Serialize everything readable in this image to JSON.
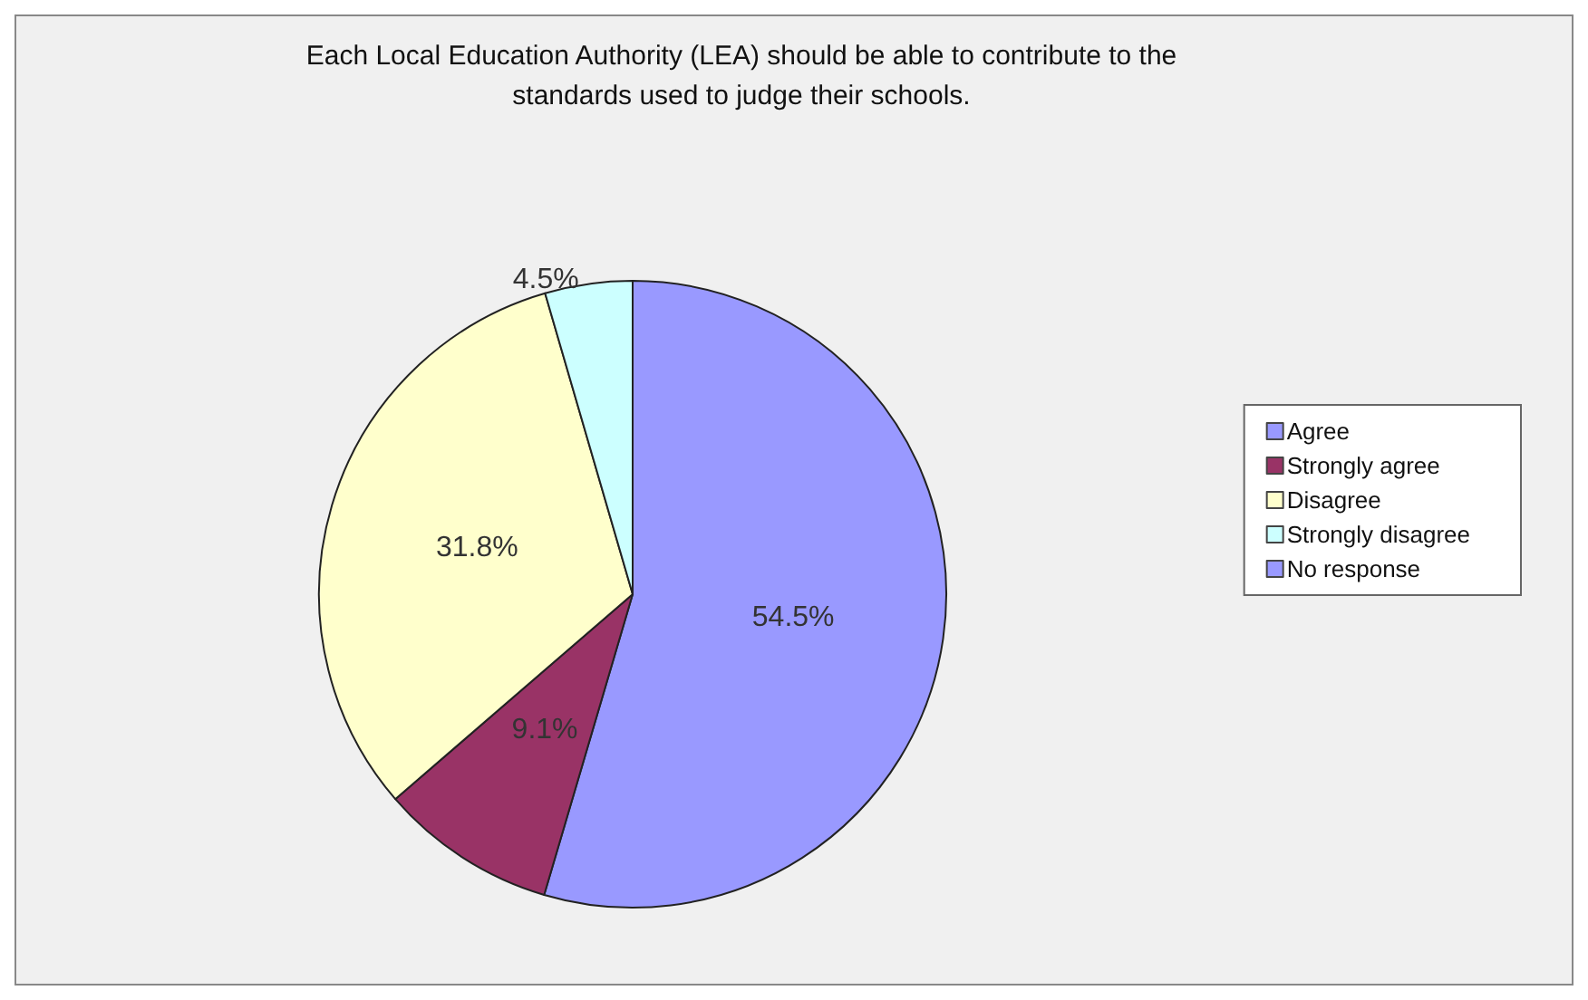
{
  "chart_data": {
    "type": "pie",
    "title": "Each Local Education Authority (LEA) should be able to contribute to the\nstandards used to judge their schools.",
    "categories": [
      "Agree",
      "Strongly agree",
      "Disagree",
      "Strongly disagree",
      "No response"
    ],
    "values": [
      54.5,
      9.1,
      31.8,
      4.5,
      0
    ],
    "colors": [
      "#9999ff",
      "#993366",
      "#ffffcc",
      "#ccffff",
      "#9999ff"
    ],
    "value_labels": [
      "54.5%",
      "9.1%",
      "31.8%",
      "4.5%",
      null
    ],
    "legend": "right"
  }
}
